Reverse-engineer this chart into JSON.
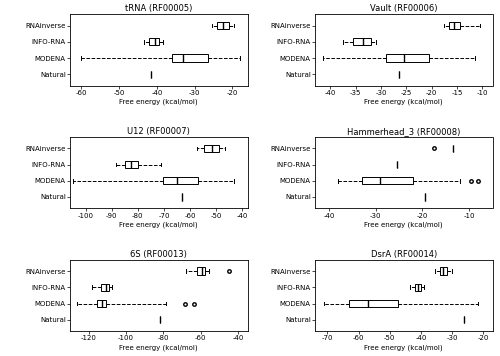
{
  "panels": [
    {
      "title": "tRNA (RF00005)",
      "xlim": [
        -63,
        -16
      ],
      "xticks": [
        -60,
        -50,
        -40,
        -30,
        -20
      ],
      "xlabel": "Free energy (kcal/mol)",
      "rows": [
        {
          "label": "RNAinverse",
          "whislo": -25.5,
          "q1": -24.0,
          "med": -22.5,
          "q3": -21.0,
          "whishi": -19.5,
          "fliers": []
        },
        {
          "label": "INFO-RNA",
          "whislo": -43.5,
          "q1": -42.0,
          "med": -40.5,
          "q3": -39.5,
          "whishi": -38.5,
          "fliers": []
        },
        {
          "label": "MODENA",
          "whislo": -60.0,
          "q1": -36.0,
          "med": -33.0,
          "q3": -26.5,
          "whishi": -18.0,
          "fliers": []
        },
        {
          "label": "Natural",
          "whislo": -41.5,
          "q1": -41.5,
          "med": -41.5,
          "q3": -41.5,
          "whishi": -41.5,
          "fliers": []
        }
      ]
    },
    {
      "title": "Vault (RF00006)",
      "xlim": [
        -43,
        -8
      ],
      "xticks": [
        -40,
        -35,
        -30,
        -25,
        -20,
        -15,
        -10
      ],
      "xlabel": "Free energy (kcal/mol)",
      "rows": [
        {
          "label": "RNAinverse",
          "whislo": -17.5,
          "q1": -16.5,
          "med": -15.5,
          "q3": -14.5,
          "whishi": -10.5,
          "fliers": []
        },
        {
          "label": "INFO-RNA",
          "whislo": -37.5,
          "q1": -35.5,
          "med": -33.5,
          "q3": -32.0,
          "whishi": -31.0,
          "fliers": []
        },
        {
          "label": "MODENA",
          "whislo": -41.5,
          "q1": -29.0,
          "med": -25.5,
          "q3": -20.5,
          "whishi": -11.5,
          "fliers": []
        },
        {
          "label": "Natural",
          "whislo": -26.5,
          "q1": -26.5,
          "med": -26.5,
          "q3": -26.5,
          "whishi": -26.5,
          "fliers": []
        }
      ]
    },
    {
      "title": "U12 (RF00007)",
      "xlim": [
        -106,
        -38
      ],
      "xticks": [
        -100,
        -90,
        -80,
        -70,
        -60,
        -50,
        -40
      ],
      "xlabel": "Free energy (kcal/mol)",
      "rows": [
        {
          "label": "RNAinverse",
          "whislo": -57.5,
          "q1": -54.5,
          "med": -51.5,
          "q3": -49.0,
          "whishi": -46.5,
          "fliers": []
        },
        {
          "label": "INFO-RNA",
          "whislo": -88.5,
          "q1": -85.0,
          "med": -82.5,
          "q3": -80.0,
          "whishi": -71.0,
          "fliers": []
        },
        {
          "label": "MODENA",
          "whislo": -105.0,
          "q1": -70.5,
          "med": -65.0,
          "q3": -57.0,
          "whishi": -43.0,
          "fliers": []
        },
        {
          "label": "Natural",
          "whislo": -63.0,
          "q1": -63.0,
          "med": -63.0,
          "q3": -63.0,
          "whishi": -63.0,
          "fliers": []
        }
      ]
    },
    {
      "title": "Hammerhead_3 (RF00008)",
      "xlim": [
        -43,
        -5
      ],
      "xticks": [
        -40,
        -30,
        -20,
        -10
      ],
      "xlabel": "Free energy (kcal/mol)",
      "rows": [
        {
          "label": "RNAinverse",
          "whislo": -13.5,
          "q1": -13.5,
          "med": -13.5,
          "q3": -13.5,
          "whishi": -13.5,
          "fliers": [
            -17.5
          ]
        },
        {
          "label": "INFO-RNA",
          "whislo": -25.5,
          "q1": -25.5,
          "med": -25.5,
          "q3": -25.5,
          "whishi": -25.5,
          "fliers": []
        },
        {
          "label": "MODENA",
          "whislo": -38.0,
          "q1": -33.0,
          "med": -29.0,
          "q3": -22.0,
          "whishi": -12.0,
          "fliers": [
            -9.5,
            -8.0
          ]
        },
        {
          "label": "Natural",
          "whislo": -19.5,
          "q1": -19.5,
          "med": -19.5,
          "q3": -19.5,
          "whishi": -19.5,
          "fliers": []
        }
      ]
    },
    {
      "title": "6S (RF00013)",
      "xlim": [
        -130,
        -35
      ],
      "xticks": [
        -120,
        -100,
        -80,
        -60,
        -40
      ],
      "xlabel": "Free energy (kcal/mol)",
      "rows": [
        {
          "label": "RNAinverse",
          "whislo": -68.0,
          "q1": -62.0,
          "med": -59.5,
          "q3": -57.5,
          "whishi": -55.5,
          "fliers": [
            -45.0
          ]
        },
        {
          "label": "INFO-RNA",
          "whislo": -118.0,
          "q1": -113.5,
          "med": -111.0,
          "q3": -109.0,
          "whishi": -107.5,
          "fliers": []
        },
        {
          "label": "MODENA",
          "whislo": -126.0,
          "q1": -115.5,
          "med": -113.0,
          "q3": -111.0,
          "whishi": -78.5,
          "fliers": [
            -68.5,
            -63.5
          ]
        },
        {
          "label": "Natural",
          "whislo": -82.0,
          "q1": -82.0,
          "med": -82.0,
          "q3": -82.0,
          "whishi": -82.0,
          "fliers": []
        }
      ]
    },
    {
      "title": "DsrA (RF00014)",
      "xlim": [
        -74,
        -17
      ],
      "xticks": [
        -70,
        -60,
        -50,
        -40,
        -30,
        -20
      ],
      "xlabel": "Free energy (kcal/mol)",
      "rows": [
        {
          "label": "RNAinverse",
          "whislo": -35.5,
          "q1": -34.0,
          "med": -33.0,
          "q3": -31.5,
          "whishi": -30.0,
          "fliers": []
        },
        {
          "label": "INFO-RNA",
          "whislo": -43.5,
          "q1": -42.0,
          "med": -41.0,
          "q3": -40.0,
          "whishi": -39.0,
          "fliers": []
        },
        {
          "label": "MODENA",
          "whislo": -71.0,
          "q1": -63.0,
          "med": -57.0,
          "q3": -47.5,
          "whishi": -21.5,
          "fliers": []
        },
        {
          "label": "Natural",
          "whislo": -26.0,
          "q1": -26.0,
          "med": -26.0,
          "q3": -26.0,
          "whishi": -26.0,
          "fliers": []
        }
      ]
    }
  ],
  "dpi": 100,
  "figsize": [
    5.0,
    3.56
  ]
}
